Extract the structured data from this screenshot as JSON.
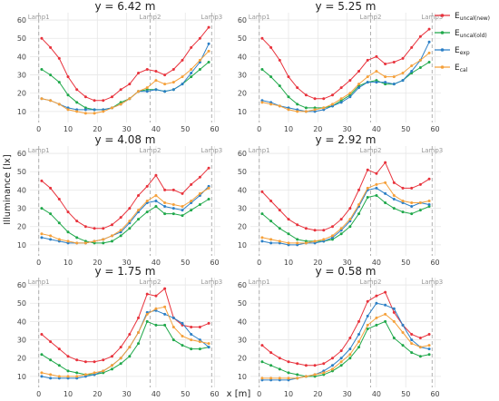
{
  "chart_data": {
    "type": "line",
    "xlabel": "x [m]",
    "ylabel": "Illuminance [lx]",
    "xlim": [
      -3,
      62
    ],
    "ylim": [
      4,
      64
    ],
    "xticks": [
      0,
      10,
      20,
      30,
      40,
      50,
      60
    ],
    "yticks": [
      10,
      20,
      30,
      40,
      50,
      60
    ],
    "grid": true,
    "legend_position": "top-right",
    "colors": {
      "E_uncal_new": "#e8323c",
      "E_uncal_old": "#1fa84a",
      "E_exp": "#2b7fc6",
      "E_cal": "#f5a03a",
      "lamp_line": "#b0b0b0"
    },
    "lamps": [
      {
        "label": "Lamp1",
        "x": 0
      },
      {
        "label": "Lamp2",
        "x": 38
      },
      {
        "label": "Lamp3",
        "x": 59
      }
    ],
    "x": [
      1,
      4,
      7,
      10,
      13,
      16,
      19,
      22,
      25,
      28,
      31,
      34,
      37,
      40,
      43,
      46,
      49,
      52,
      55,
      58
    ],
    "legend": [
      {
        "key": "E_uncal_new",
        "base": "E",
        "sub": "uncal(new)"
      },
      {
        "key": "E_uncal_old",
        "base": "E",
        "sub": "uncal(old)"
      },
      {
        "key": "E_exp",
        "base": "E",
        "sub": "exp"
      },
      {
        "key": "E_cal",
        "base": "E",
        "sub": "cal"
      }
    ],
    "panels": [
      {
        "title": "y = 6.42 m",
        "series": [
          {
            "key": "E_uncal_new",
            "values": [
              50,
              45,
              39,
              29,
              22,
              18,
              16,
              16,
              18,
              22,
              25,
              31,
              33,
              32,
              30,
              33,
              38,
              45,
              50,
              56
            ]
          },
          {
            "key": "E_uncal_old",
            "values": [
              33,
              30,
              26,
              19,
              15,
              12,
              11,
              11,
              12,
              15,
              17,
              21,
              22,
              22,
              21,
              22,
              25,
              29,
              33,
              37
            ]
          },
          {
            "key": "E_exp",
            "values": [
              17,
              16,
              14,
              12,
              11,
              11,
              11,
              11,
              12,
              14,
              17,
              21,
              21,
              22,
              21,
              22,
              25,
              31,
              37,
              47
            ]
          },
          {
            "key": "E_cal",
            "values": [
              17,
              16,
              14,
              11,
              10,
              9,
              9,
              10,
              12,
              14,
              17,
              21,
              23,
              27,
              25,
              26,
              29,
              33,
              38,
              43
            ]
          }
        ]
      },
      {
        "title": "y = 5.25 m",
        "series": [
          {
            "key": "E_uncal_new",
            "values": [
              50,
              45,
              38,
              29,
              23,
              19,
              17,
              17,
              19,
              23,
              27,
              32,
              38,
              40,
              36,
              37,
              39,
              45,
              51,
              55
            ]
          },
          {
            "key": "E_uncal_old",
            "values": [
              33,
              29,
              24,
              18,
              14,
              12,
              12,
              12,
              13,
              16,
              19,
              24,
              26,
              27,
              25,
              25,
              27,
              31,
              34,
              37
            ]
          },
          {
            "key": "E_exp",
            "values": [
              16,
              15,
              13,
              12,
              11,
              10,
              10,
              11,
              13,
              15,
              18,
              23,
              26,
              26,
              26,
              25,
              27,
              32,
              38,
              48
            ]
          },
          {
            "key": "E_cal",
            "values": [
              15,
              14,
              13,
              11,
              10,
              10,
              11,
              12,
              14,
              17,
              20,
              25,
              29,
              32,
              29,
              29,
              31,
              35,
              38,
              42
            ]
          }
        ]
      },
      {
        "title": "y = 4.08 m",
        "series": [
          {
            "key": "E_uncal_new",
            "values": [
              45,
              41,
              35,
              28,
              23,
              20,
              19,
              19,
              21,
              25,
              30,
              37,
              42,
              48,
              40,
              40,
              38,
              43,
              47,
              52
            ]
          },
          {
            "key": "E_uncal_old",
            "values": [
              30,
              27,
              22,
              17,
              14,
              12,
              11,
              11,
              12,
              15,
              19,
              24,
              28,
              31,
              27,
              27,
              26,
              29,
              32,
              35
            ]
          },
          {
            "key": "E_exp",
            "values": [
              14,
              13,
              12,
              11,
              11,
              11,
              12,
              13,
              15,
              17,
              22,
              28,
              33,
              34,
              31,
              30,
              29,
              33,
              37,
              42
            ]
          },
          {
            "key": "E_cal",
            "values": [
              16,
              15,
              13,
              12,
              11,
              11,
              12,
              13,
              15,
              18,
              23,
              29,
              34,
              37,
              33,
              32,
              31,
              34,
              38,
              41
            ]
          }
        ]
      },
      {
        "title": "y = 2.92 m",
        "series": [
          {
            "key": "E_uncal_new",
            "values": [
              39,
              34,
              29,
              24,
              21,
              19,
              18,
              18,
              20,
              24,
              30,
              40,
              51,
              49,
              55,
              44,
              41,
              41,
              43,
              46
            ]
          },
          {
            "key": "E_uncal_old",
            "values": [
              27,
              23,
              19,
              16,
              13,
              12,
              12,
              12,
              13,
              16,
              20,
              27,
              36,
              37,
              33,
              30,
              28,
              27,
              29,
              31
            ]
          },
          {
            "key": "E_exp",
            "values": [
              12,
              11,
              11,
              10,
              10,
              11,
              11,
              12,
              14,
              18,
              23,
              31,
              40,
              41,
              38,
              35,
              33,
              31,
              33,
              32
            ]
          },
          {
            "key": "E_cal",
            "values": [
              14,
              13,
              12,
              11,
              11,
              11,
              12,
              13,
              15,
              19,
              24,
              32,
              41,
              43,
              44,
              37,
              34,
              33,
              33,
              34
            ]
          }
        ]
      },
      {
        "title": "y = 1.75 m",
        "series": [
          {
            "key": "E_uncal_new",
            "values": [
              33,
              29,
              25,
              21,
              19,
              18,
              18,
              19,
              21,
              26,
              33,
              42,
              55,
              54,
              58,
              42,
              38,
              37,
              37,
              39
            ]
          },
          {
            "key": "E_uncal_old",
            "values": [
              22,
              19,
              16,
              13,
              12,
              11,
              11,
              12,
              14,
              17,
              21,
              28,
              40,
              38,
              38,
              30,
              27,
              25,
              25,
              26
            ]
          },
          {
            "key": "E_exp",
            "values": [
              10,
              9,
              9,
              9,
              9,
              10,
              11,
              13,
              16,
              20,
              26,
              34,
              45,
              46,
              44,
              42,
              39,
              33,
              30,
              26
            ]
          },
          {
            "key": "E_cal",
            "values": [
              12,
              11,
              10,
              10,
              10,
              11,
              12,
              13,
              16,
              20,
              26,
              34,
              44,
              47,
              48,
              37,
              32,
              30,
              29,
              28
            ]
          }
        ]
      },
      {
        "title": "y = 0.58 m",
        "series": [
          {
            "key": "E_uncal_new",
            "values": [
              27,
              23,
              20,
              18,
              17,
              16,
              16,
              17,
              20,
              24,
              31,
              40,
              51,
              54,
              56,
              45,
              38,
              33,
              31,
              33
            ]
          },
          {
            "key": "E_uncal_old",
            "values": [
              18,
              16,
              14,
              12,
              11,
              10,
              10,
              11,
              13,
              16,
              20,
              26,
              36,
              38,
              40,
              31,
              27,
              23,
              21,
              22
            ]
          },
          {
            "key": "E_exp",
            "values": [
              8,
              8,
              8,
              8,
              9,
              10,
              11,
              13,
              16,
              20,
              25,
              33,
              43,
              50,
              49,
              47,
              38,
              30,
              26,
              25
            ]
          },
          {
            "key": "E_cal",
            "values": [
              9,
              9,
              9,
              9,
              9,
              10,
              11,
              12,
              14,
              18,
              22,
              29,
              38,
              42,
              44,
              40,
              34,
              28,
              26,
              27
            ]
          }
        ]
      }
    ]
  }
}
